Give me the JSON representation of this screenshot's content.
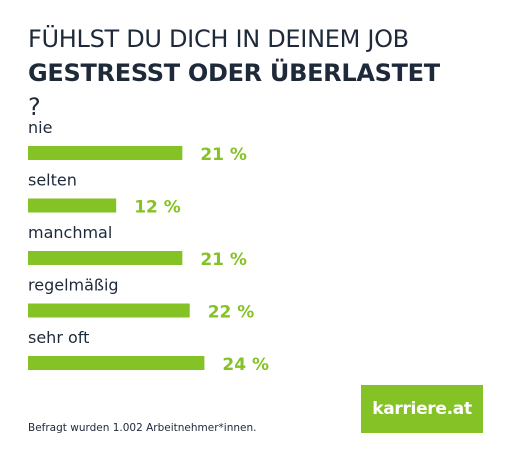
{
  "title": {
    "line1": "FÜHLST DU DICH IN DEINEM JOB",
    "line2": "GESTRESST ODER ÜBERLASTET",
    "line2_suffix": "?"
  },
  "chart_data": {
    "type": "bar",
    "orientation": "horizontal",
    "categories": [
      "nie",
      "selten",
      "manchmal",
      "regelmäßig",
      "sehr oft"
    ],
    "values": [
      21,
      12,
      21,
      22,
      24
    ],
    "value_labels": [
      "21 %",
      "12 %",
      "21 %",
      "22 %",
      "24 %"
    ],
    "unit": "%",
    "bar_color": "#84c225",
    "label_color": "#84c225",
    "category_color": "#1e2a3a",
    "grid": false,
    "legend": "none"
  },
  "footnote": "Befragt wurden 1.002 Arbeitnehmer*innen.",
  "logo": {
    "text": "karriere.at",
    "background": "#84c225",
    "color": "#ffffff"
  }
}
